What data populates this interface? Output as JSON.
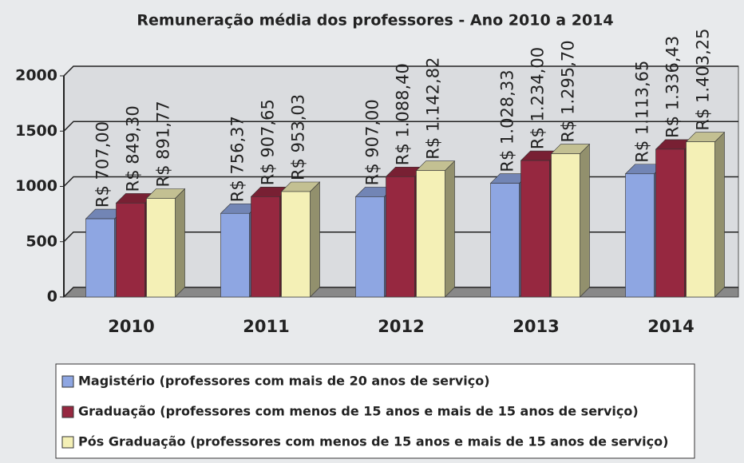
{
  "chart_data": {
    "type": "bar",
    "title": "Remuneração média dos professores - Ano 2010 a 2014",
    "categories": [
      "2010",
      "2011",
      "2012",
      "2013",
      "2014"
    ],
    "series": [
      {
        "name": "Magistério (professores com mais de 20 anos de serviço)",
        "color": "#8ea6e2",
        "values": [
          707.0,
          756.37,
          907.0,
          1028.33,
          1113.65
        ],
        "value_labels": [
          "R$ 707,00",
          "R$ 756,37",
          "R$ 907,00",
          "R$ 1.028,33",
          "R$ 1.113,65"
        ]
      },
      {
        "name": "Graduação (professores com menos de 15 anos e mais de 15 anos de serviço)",
        "color": "#962840",
        "values": [
          849.3,
          907.65,
          1088.4,
          1234.0,
          1336.43
        ],
        "value_labels": [
          "R$ 849,30",
          "R$ 907,65",
          "R$ 1.088,40",
          "R$ 1.234,00",
          "R$ 1.336,43"
        ]
      },
      {
        "name": "Pós Graduação (professores com menos de 15 anos e mais de 15 anos de serviço)",
        "color": "#f4f0b6",
        "values": [
          891.77,
          953.03,
          1142.82,
          1295.7,
          1403.25
        ],
        "value_labels": [
          "R$ 891,77",
          "R$ 953,03",
          "R$ 1.142,82",
          "R$ 1.295,70",
          "R$ 1.403,25"
        ]
      }
    ],
    "ylim": [
      0,
      2000
    ],
    "yticks": [
      0,
      500,
      1000,
      1500,
      2000
    ],
    "grid": true
  }
}
